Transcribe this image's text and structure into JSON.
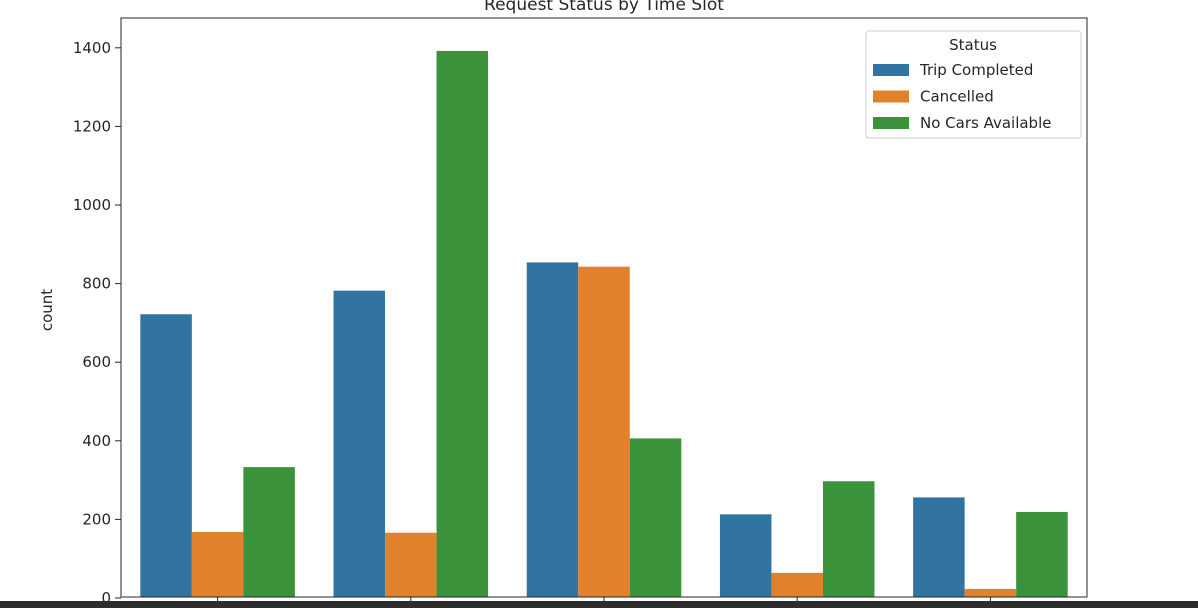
{
  "chart_data": {
    "type": "bar",
    "title": "Request Status by Time Slot",
    "xlabel": "",
    "ylabel": "count",
    "categories": [
      "",
      "",
      "",
      "",
      ""
    ],
    "series": [
      {
        "name": "Trip Completed",
        "color": "#3274a1",
        "values": [
          722,
          782,
          854,
          213,
          256
        ]
      },
      {
        "name": "Cancelled",
        "color": "#e1812c",
        "values": [
          168,
          166,
          843,
          64,
          23
        ]
      },
      {
        "name": "No Cars Available",
        "color": "#3a923a",
        "values": [
          333,
          1392,
          406,
          297,
          219
        ]
      }
    ],
    "ylim": [
      0,
      1500
    ],
    "yticks": [
      0,
      200,
      400,
      600,
      800,
      1000,
      1200,
      1400
    ],
    "ytick_labels": [
      "0",
      "200",
      "400",
      "600",
      "800",
      "1000",
      "1200",
      "1400"
    ],
    "legend": {
      "title": "Status",
      "position": "upper right",
      "entries": [
        "Trip Completed",
        "Cancelled",
        "No Cars Available"
      ]
    },
    "grid": false
  }
}
